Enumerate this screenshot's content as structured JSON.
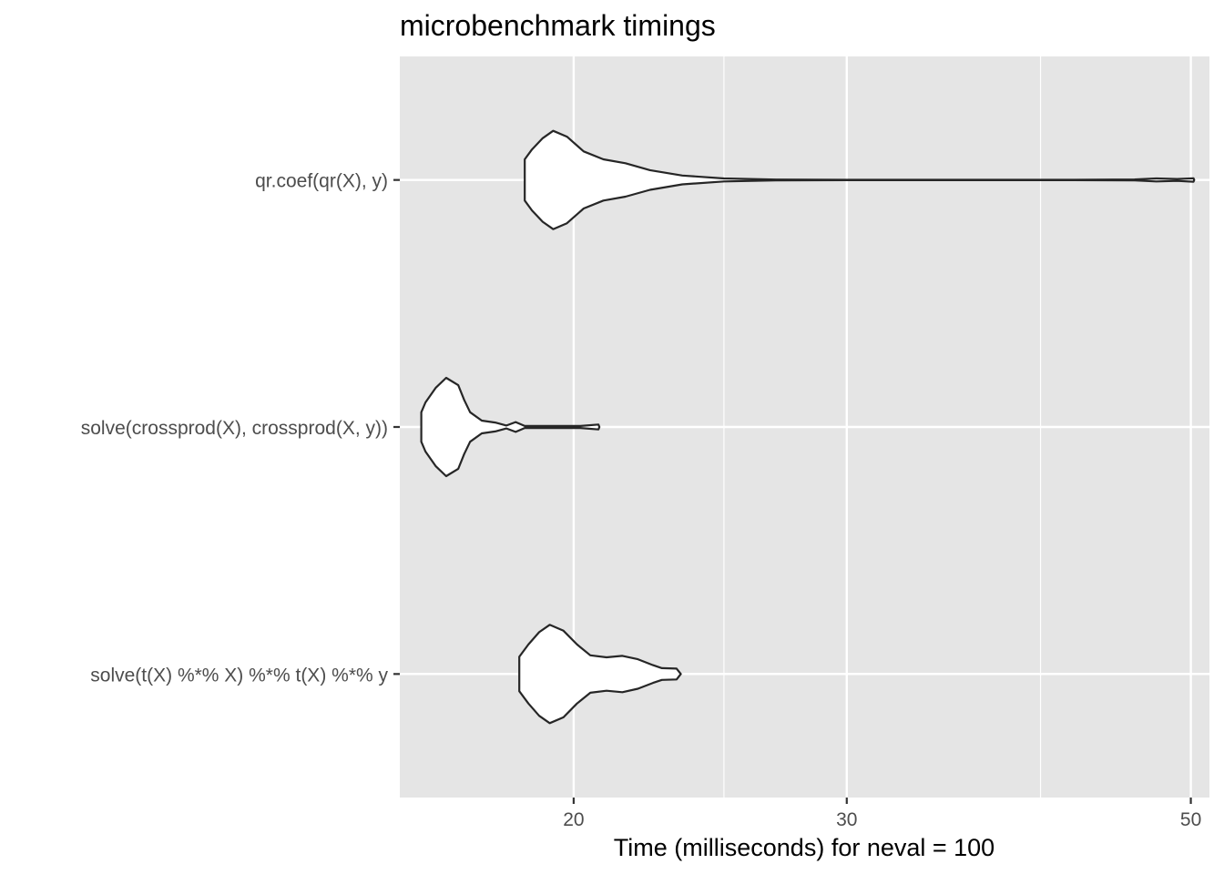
{
  "chart_data": {
    "type": "violin",
    "title": "microbenchmark timings",
    "xlabel": "Time (milliseconds) for neval = 100",
    "ylabel": "",
    "x_scale": "log",
    "xlim": [
      15.45,
      51.4
    ],
    "x_ticks": [
      20,
      30,
      50
    ],
    "x_tick_labels": [
      "20",
      "30",
      "50"
    ],
    "x_minor_ticks": [
      25,
      40
    ],
    "grid": true,
    "colors": {
      "panel": "#e5e5e5",
      "grid": "#ffffff",
      "violin_fill": "#ffffff",
      "violin_stroke": "#262626",
      "text": "#000000",
      "tick_text": "#4d4d4d"
    },
    "categories": [
      "qr.coef(qr(X), y)",
      "solve(crossprod(X), crossprod(X, y))",
      "solve(t(X) %*% X) %*% t(X) %*% y"
    ],
    "violins": [
      {
        "category": "qr.coef(qr(X), y)",
        "density": [
          [
            18.6,
            0.42
          ],
          [
            18.8,
            0.62
          ],
          [
            19.1,
            0.85
          ],
          [
            19.4,
            1.0
          ],
          [
            19.8,
            0.88
          ],
          [
            20.3,
            0.58
          ],
          [
            20.9,
            0.42
          ],
          [
            21.6,
            0.34
          ],
          [
            22.4,
            0.2
          ],
          [
            23.5,
            0.09
          ],
          [
            25.0,
            0.03
          ],
          [
            27.0,
            0.008
          ],
          [
            30.0,
            0.004
          ],
          [
            36.0,
            0.004
          ],
          [
            42.0,
            0.004
          ],
          [
            46.0,
            0.01
          ],
          [
            47.5,
            0.03
          ],
          [
            49.0,
            0.02
          ],
          [
            50.2,
            0.035
          ],
          [
            50.25,
            0.0
          ]
        ]
      },
      {
        "category": "solve(crossprod(X), crossprod(X, y))",
        "density": [
          [
            15.95,
            0.3
          ],
          [
            16.05,
            0.5
          ],
          [
            16.3,
            0.8
          ],
          [
            16.55,
            1.0
          ],
          [
            16.85,
            0.85
          ],
          [
            17.0,
            0.55
          ],
          [
            17.15,
            0.3
          ],
          [
            17.45,
            0.13
          ],
          [
            17.8,
            0.09
          ],
          [
            18.1,
            0.03
          ],
          [
            18.35,
            0.1
          ],
          [
            18.6,
            0.02
          ],
          [
            19.5,
            0.02
          ],
          [
            20.2,
            0.02
          ],
          [
            20.75,
            0.05
          ],
          [
            20.78,
            0.0
          ]
        ]
      },
      {
        "category": "solve(t(X) %*% X) %*% t(X) %*% y",
        "density": [
          [
            18.45,
            0.35
          ],
          [
            18.7,
            0.6
          ],
          [
            19.0,
            0.85
          ],
          [
            19.3,
            1.0
          ],
          [
            19.7,
            0.88
          ],
          [
            20.1,
            0.6
          ],
          [
            20.5,
            0.38
          ],
          [
            21.0,
            0.34
          ],
          [
            21.5,
            0.37
          ],
          [
            22.0,
            0.3
          ],
          [
            22.5,
            0.18
          ],
          [
            22.8,
            0.12
          ],
          [
            23.3,
            0.11
          ],
          [
            23.45,
            0.0
          ]
        ]
      }
    ]
  }
}
